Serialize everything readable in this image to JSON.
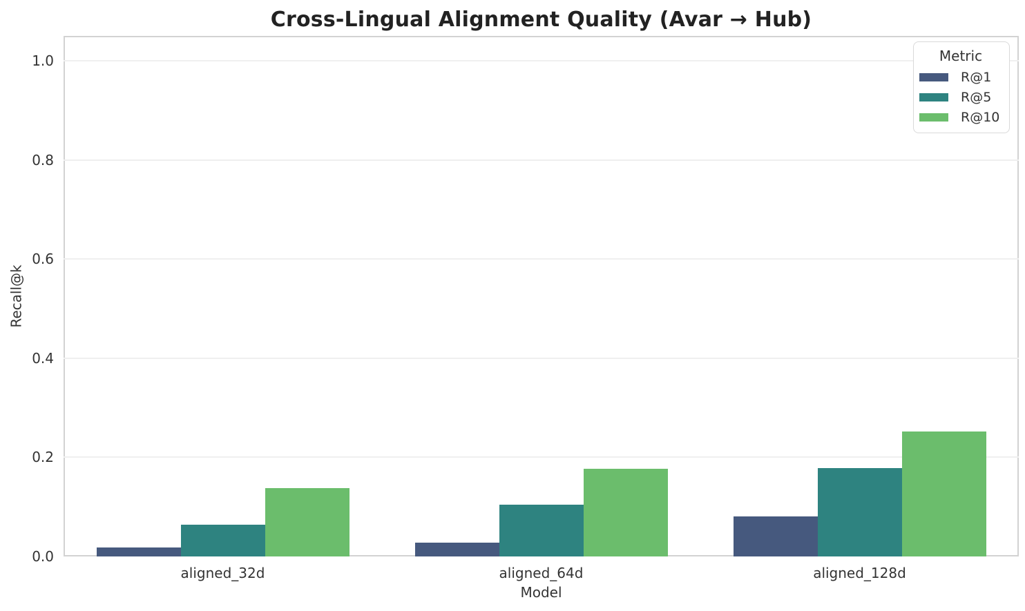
{
  "chart_data": {
    "type": "bar",
    "title": "Cross-Lingual Alignment Quality (Avar → Hub)",
    "xlabel": "Model",
    "ylabel": "Recall@k",
    "legend_title": "Metric",
    "legend_position": "upper right",
    "grid": "horizontal",
    "categories": [
      "aligned_32d",
      "aligned_64d",
      "aligned_128d"
    ],
    "series": [
      {
        "name": "R@1",
        "color": "#46597E",
        "values": [
          0.018,
          0.028,
          0.081
        ]
      },
      {
        "name": "R@5",
        "color": "#2E8380",
        "values": [
          0.064,
          0.104,
          0.178
        ]
      },
      {
        "name": "R@10",
        "color": "#6BBD6C",
        "values": [
          0.138,
          0.177,
          0.252
        ]
      }
    ],
    "ylim": [
      0,
      1.05
    ],
    "yticks": [
      0.0,
      0.2,
      0.4,
      0.6,
      0.8,
      1.0
    ]
  },
  "style_colors": {
    "grid": "#efefef",
    "spine": "#d2d2d2",
    "text": "#333333",
    "title": "#222222"
  }
}
